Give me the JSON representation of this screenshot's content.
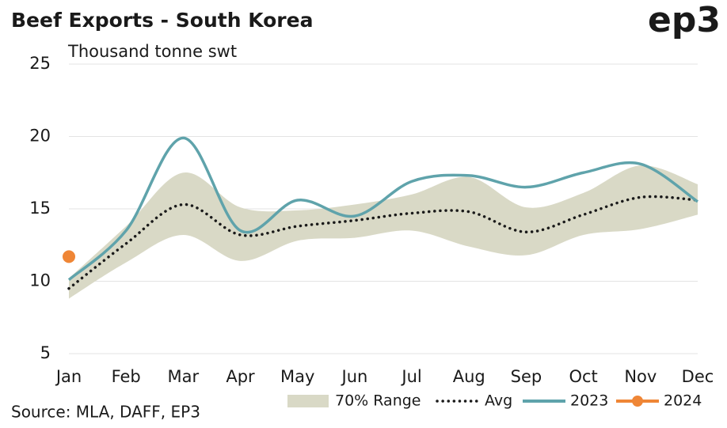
{
  "chart_data": {
    "type": "line",
    "title": "Beef Exports - South Korea",
    "logo": "ep3",
    "subtitle": "Thousand tonne swt",
    "source": "Source: MLA, DAFF, EP3",
    "categories": [
      "Jan",
      "Feb",
      "Mar",
      "Apr",
      "May",
      "Jun",
      "Jul",
      "Aug",
      "Sep",
      "Oct",
      "Nov",
      "Dec"
    ],
    "ylim": [
      5,
      25
    ],
    "yticks": [
      5,
      10,
      15,
      20,
      25
    ],
    "grid": true,
    "legend": "bottom",
    "series": [
      {
        "name": "70% Range",
        "type": "range",
        "color": "#d9d9c6",
        "upper": [
          10.2,
          13.8,
          17.5,
          15.1,
          14.9,
          15.3,
          16.0,
          17.2,
          15.1,
          16.1,
          18.0,
          16.7
        ],
        "lower": [
          8.8,
          11.3,
          13.2,
          11.4,
          12.8,
          13.0,
          13.5,
          12.4,
          11.8,
          13.2,
          13.6,
          14.6
        ]
      },
      {
        "name": "Avg",
        "type": "dotted",
        "color": "#1a1a1a",
        "values": [
          9.5,
          12.6,
          15.3,
          13.2,
          13.8,
          14.2,
          14.7,
          14.8,
          13.4,
          14.6,
          15.8,
          15.6
        ]
      },
      {
        "name": "2023",
        "type": "line",
        "color": "#5fa3ab",
        "values": [
          10.1,
          13.5,
          19.9,
          13.5,
          15.6,
          14.5,
          16.9,
          17.3,
          16.5,
          17.5,
          18.1,
          15.5
        ]
      },
      {
        "name": "2024",
        "type": "point",
        "color": "#ef8636",
        "values": [
          11.7,
          null,
          null,
          null,
          null,
          null,
          null,
          null,
          null,
          null,
          null,
          null
        ]
      }
    ]
  }
}
